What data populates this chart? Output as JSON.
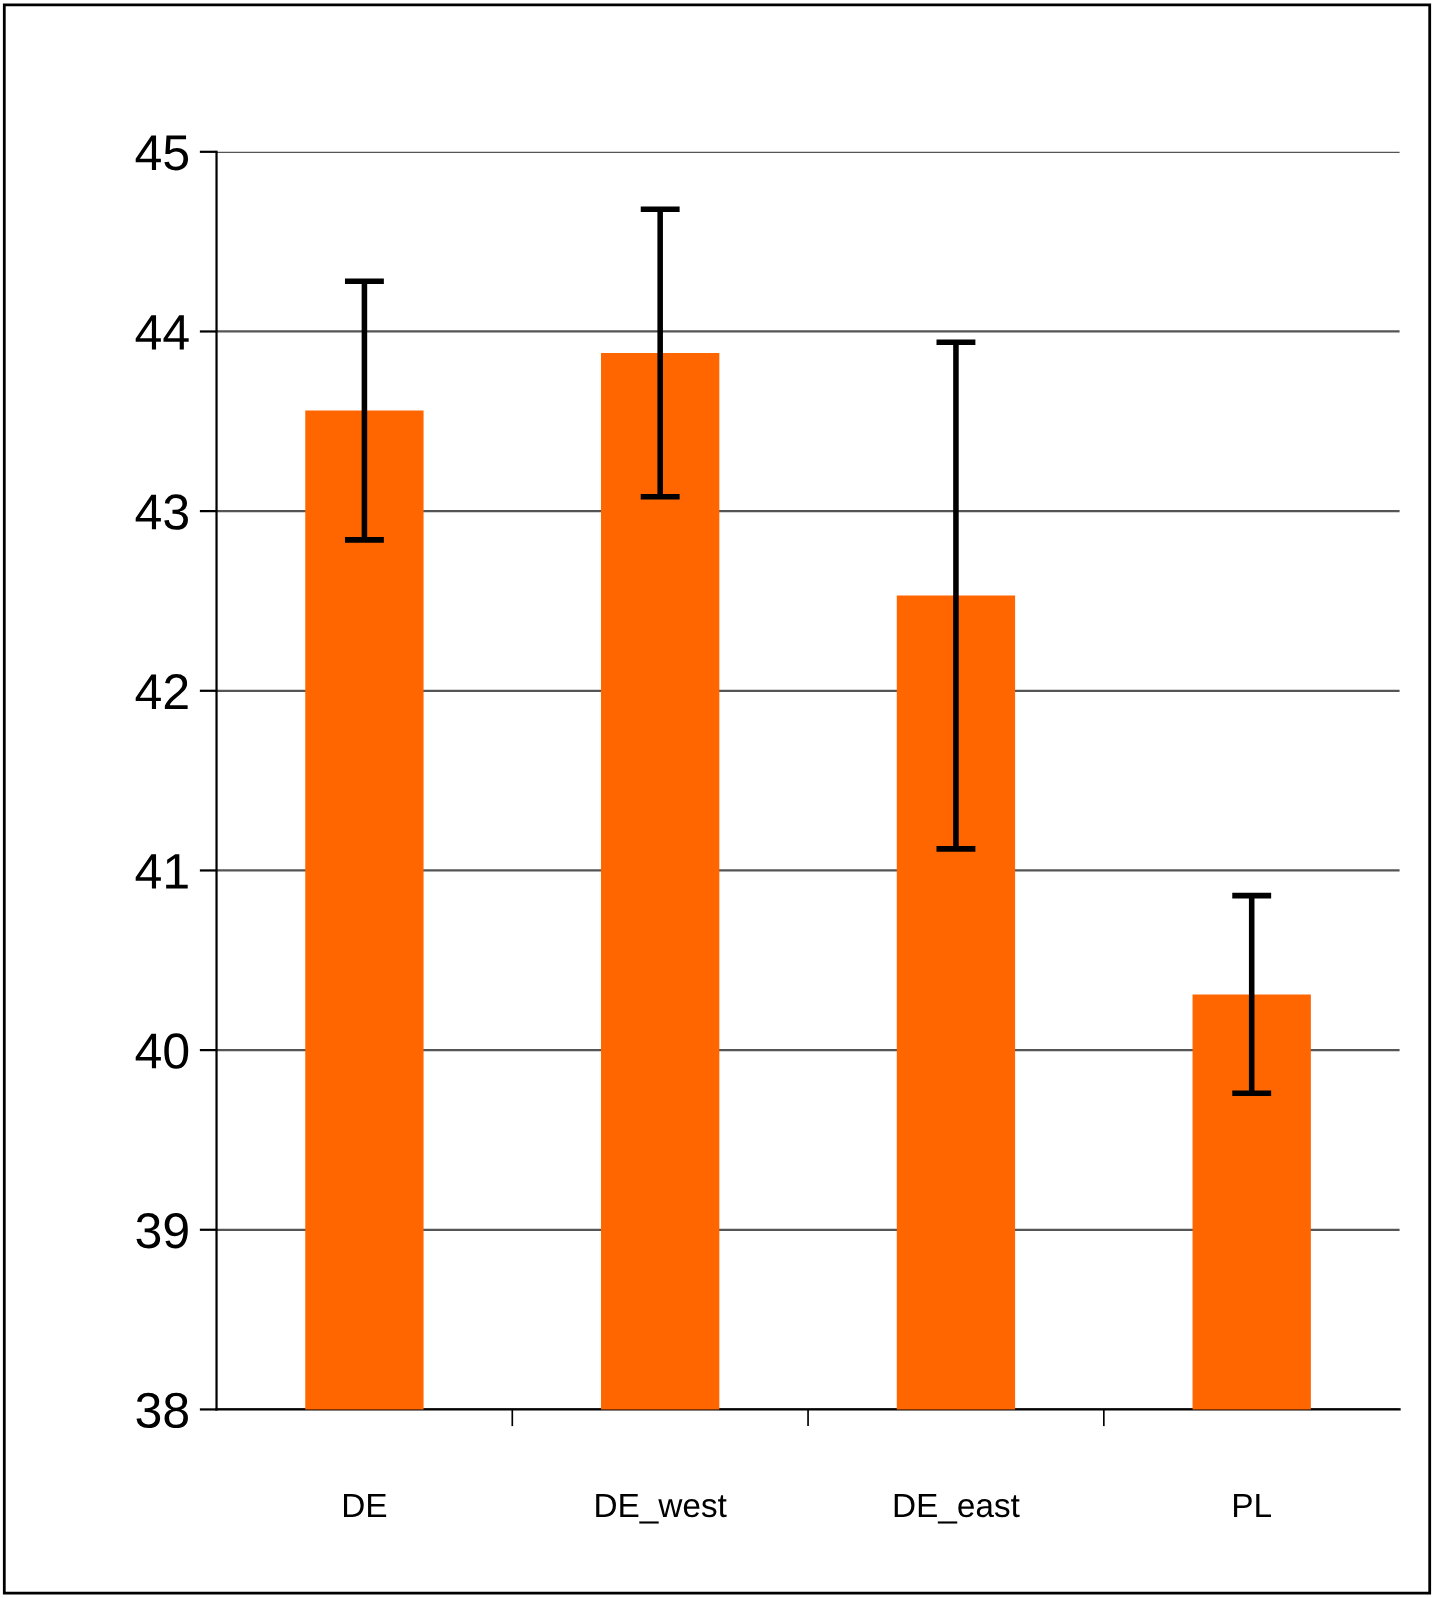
{
  "chart_data": {
    "type": "bar",
    "categories": [
      "DE",
      "DE_west",
      "DE_east",
      "PL"
    ],
    "values": [
      43.56,
      43.88,
      42.53,
      40.31
    ],
    "errors": [
      0.72,
      0.8,
      1.41,
      0.55
    ],
    "color": "#ff6600",
    "ylim": [
      38,
      45
    ],
    "yticks": [
      38,
      39,
      40,
      41,
      42,
      43,
      44,
      45
    ],
    "grid": "y"
  }
}
